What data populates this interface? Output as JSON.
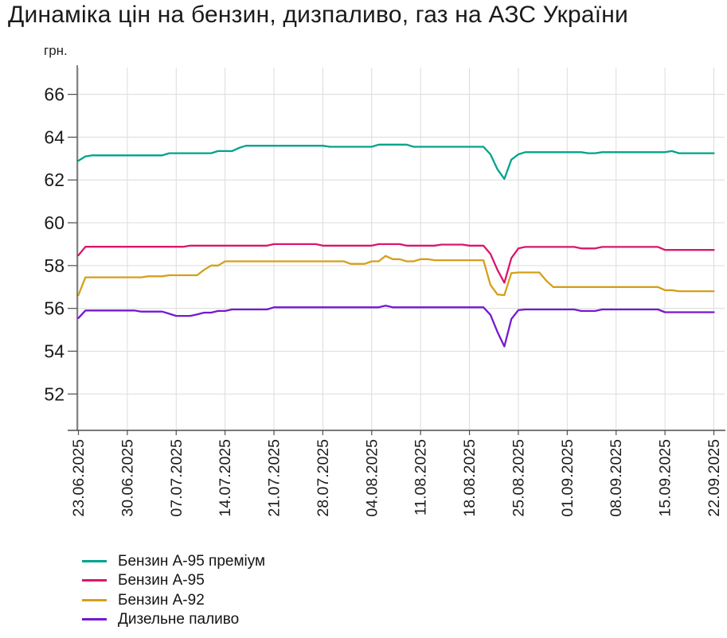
{
  "title": "Динаміка цін на бензин, дизпаливо, газ на АЗС України",
  "y_axis_unit": "грн.",
  "chart_data": {
    "type": "line",
    "title": "Динаміка цін на бензин, дизпаливо, газ на АЗС України",
    "xlabel": "",
    "ylabel": "грн.",
    "ylim": [
      50.3,
      67.25
    ],
    "y_ticks": [
      52,
      54,
      56,
      58,
      60,
      62,
      64,
      66
    ],
    "x_tick_labels": [
      "23.06.2025",
      "30.06.2025",
      "07.07.2025",
      "14.07.2025",
      "21.07.2025",
      "28.07.2025",
      "04.08.2025",
      "11.08.2025",
      "18.08.2025",
      "25.08.2025",
      "01.09.2025",
      "08.09.2025",
      "15.09.2025",
      "22.09.2025"
    ],
    "x_frequency": "daily points from 23.06.2025 to 22.09.2025, weekly ticks",
    "grid": true,
    "legend_position": "bottom-left",
    "colors": {
      "axis": "#4d4d4d",
      "gridline": "#dcdcdc",
      "text": "#1c1c1c"
    },
    "series": [
      {
        "name": "Бензин А-95 преміум",
        "color": "#00A38C",
        "values": [
          62.9,
          63.1,
          63.15,
          63.15,
          63.15,
          63.15,
          63.15,
          63.15,
          63.15,
          63.15,
          63.15,
          63.15,
          63.15,
          63.25,
          63.25,
          63.25,
          63.25,
          63.25,
          63.25,
          63.25,
          63.35,
          63.35,
          63.35,
          63.5,
          63.6,
          63.6,
          63.6,
          63.6,
          63.6,
          63.6,
          63.6,
          63.6,
          63.6,
          63.6,
          63.6,
          63.6,
          63.55,
          63.55,
          63.55,
          63.55,
          63.55,
          63.55,
          63.55,
          63.65,
          63.65,
          63.65,
          63.65,
          63.65,
          63.55,
          63.55,
          63.55,
          63.55,
          63.55,
          63.55,
          63.55,
          63.55,
          63.55,
          63.55,
          63.55,
          63.2,
          62.5,
          62.05,
          62.95,
          63.2,
          63.3,
          63.3,
          63.3,
          63.3,
          63.3,
          63.3,
          63.3,
          63.3,
          63.3,
          63.25,
          63.25,
          63.3,
          63.3,
          63.3,
          63.3,
          63.3,
          63.3,
          63.3,
          63.3,
          63.3,
          63.3,
          63.35,
          63.25,
          63.25,
          63.25,
          63.25,
          63.25,
          63.25
        ]
      },
      {
        "name": "Бензин А-95",
        "color": "#D9176C",
        "values": [
          58.48,
          58.88,
          58.88,
          58.88,
          58.88,
          58.88,
          58.88,
          58.88,
          58.88,
          58.88,
          58.88,
          58.88,
          58.88,
          58.88,
          58.88,
          58.88,
          58.93,
          58.93,
          58.93,
          58.93,
          58.93,
          58.93,
          58.93,
          58.93,
          58.93,
          58.93,
          58.93,
          58.93,
          59,
          59,
          59,
          59,
          59,
          59,
          59,
          58.93,
          58.93,
          58.93,
          58.93,
          58.93,
          58.93,
          58.93,
          58.93,
          59,
          59,
          59,
          59,
          58.93,
          58.93,
          58.93,
          58.93,
          58.93,
          58.98,
          58.98,
          58.98,
          58.98,
          58.93,
          58.93,
          58.93,
          58.55,
          57.8,
          57.2,
          58.35,
          58.8,
          58.87,
          58.87,
          58.87,
          58.87,
          58.87,
          58.87,
          58.87,
          58.87,
          58.8,
          58.8,
          58.8,
          58.87,
          58.87,
          58.87,
          58.87,
          58.87,
          58.87,
          58.87,
          58.87,
          58.87,
          58.73,
          58.73,
          58.73,
          58.73,
          58.73,
          58.73,
          58.73,
          58.73
        ]
      },
      {
        "name": "Бензин А-92",
        "color": "#D5A019",
        "values": [
          56.62,
          57.45,
          57.45,
          57.45,
          57.45,
          57.45,
          57.45,
          57.45,
          57.45,
          57.45,
          57.5,
          57.5,
          57.5,
          57.55,
          57.55,
          57.55,
          57.55,
          57.55,
          57.8,
          58,
          58,
          58.2,
          58.2,
          58.2,
          58.2,
          58.2,
          58.2,
          58.2,
          58.2,
          58.2,
          58.2,
          58.2,
          58.2,
          58.2,
          58.2,
          58.2,
          58.2,
          58.2,
          58.2,
          58.08,
          58.08,
          58.08,
          58.2,
          58.2,
          58.45,
          58.3,
          58.3,
          58.2,
          58.2,
          58.3,
          58.3,
          58.25,
          58.25,
          58.25,
          58.25,
          58.25,
          58.25,
          58.25,
          58.25,
          57.1,
          56.65,
          56.62,
          57.65,
          57.68,
          57.68,
          57.68,
          57.68,
          57.3,
          57,
          57,
          57,
          57,
          57,
          57,
          57,
          57,
          57,
          57,
          57,
          57,
          57,
          57,
          57,
          57,
          56.85,
          56.85,
          56.8,
          56.8,
          56.8,
          56.8,
          56.8,
          56.8
        ]
      },
      {
        "name": "Дизельне паливо",
        "color": "#7519D0",
        "values": [
          55.55,
          55.9,
          55.9,
          55.9,
          55.9,
          55.9,
          55.9,
          55.9,
          55.9,
          55.85,
          55.85,
          55.85,
          55.85,
          55.75,
          55.65,
          55.65,
          55.65,
          55.72,
          55.8,
          55.8,
          55.88,
          55.88,
          55.95,
          55.95,
          55.95,
          55.95,
          55.95,
          55.95,
          56.05,
          56.05,
          56.05,
          56.05,
          56.05,
          56.05,
          56.05,
          56.05,
          56.05,
          56.05,
          56.05,
          56.05,
          56.05,
          56.05,
          56.05,
          56.05,
          56.13,
          56.05,
          56.05,
          56.05,
          56.05,
          56.05,
          56.05,
          56.05,
          56.05,
          56.05,
          56.05,
          56.05,
          56.05,
          56.05,
          56.05,
          55.7,
          54.9,
          54.22,
          55.5,
          55.92,
          55.95,
          55.95,
          55.95,
          55.95,
          55.95,
          55.95,
          55.95,
          55.95,
          55.88,
          55.88,
          55.88,
          55.95,
          55.95,
          55.95,
          55.95,
          55.95,
          55.95,
          55.95,
          55.95,
          55.95,
          55.82,
          55.82,
          55.82,
          55.82,
          55.82,
          55.82,
          55.82,
          55.82
        ]
      }
    ]
  }
}
